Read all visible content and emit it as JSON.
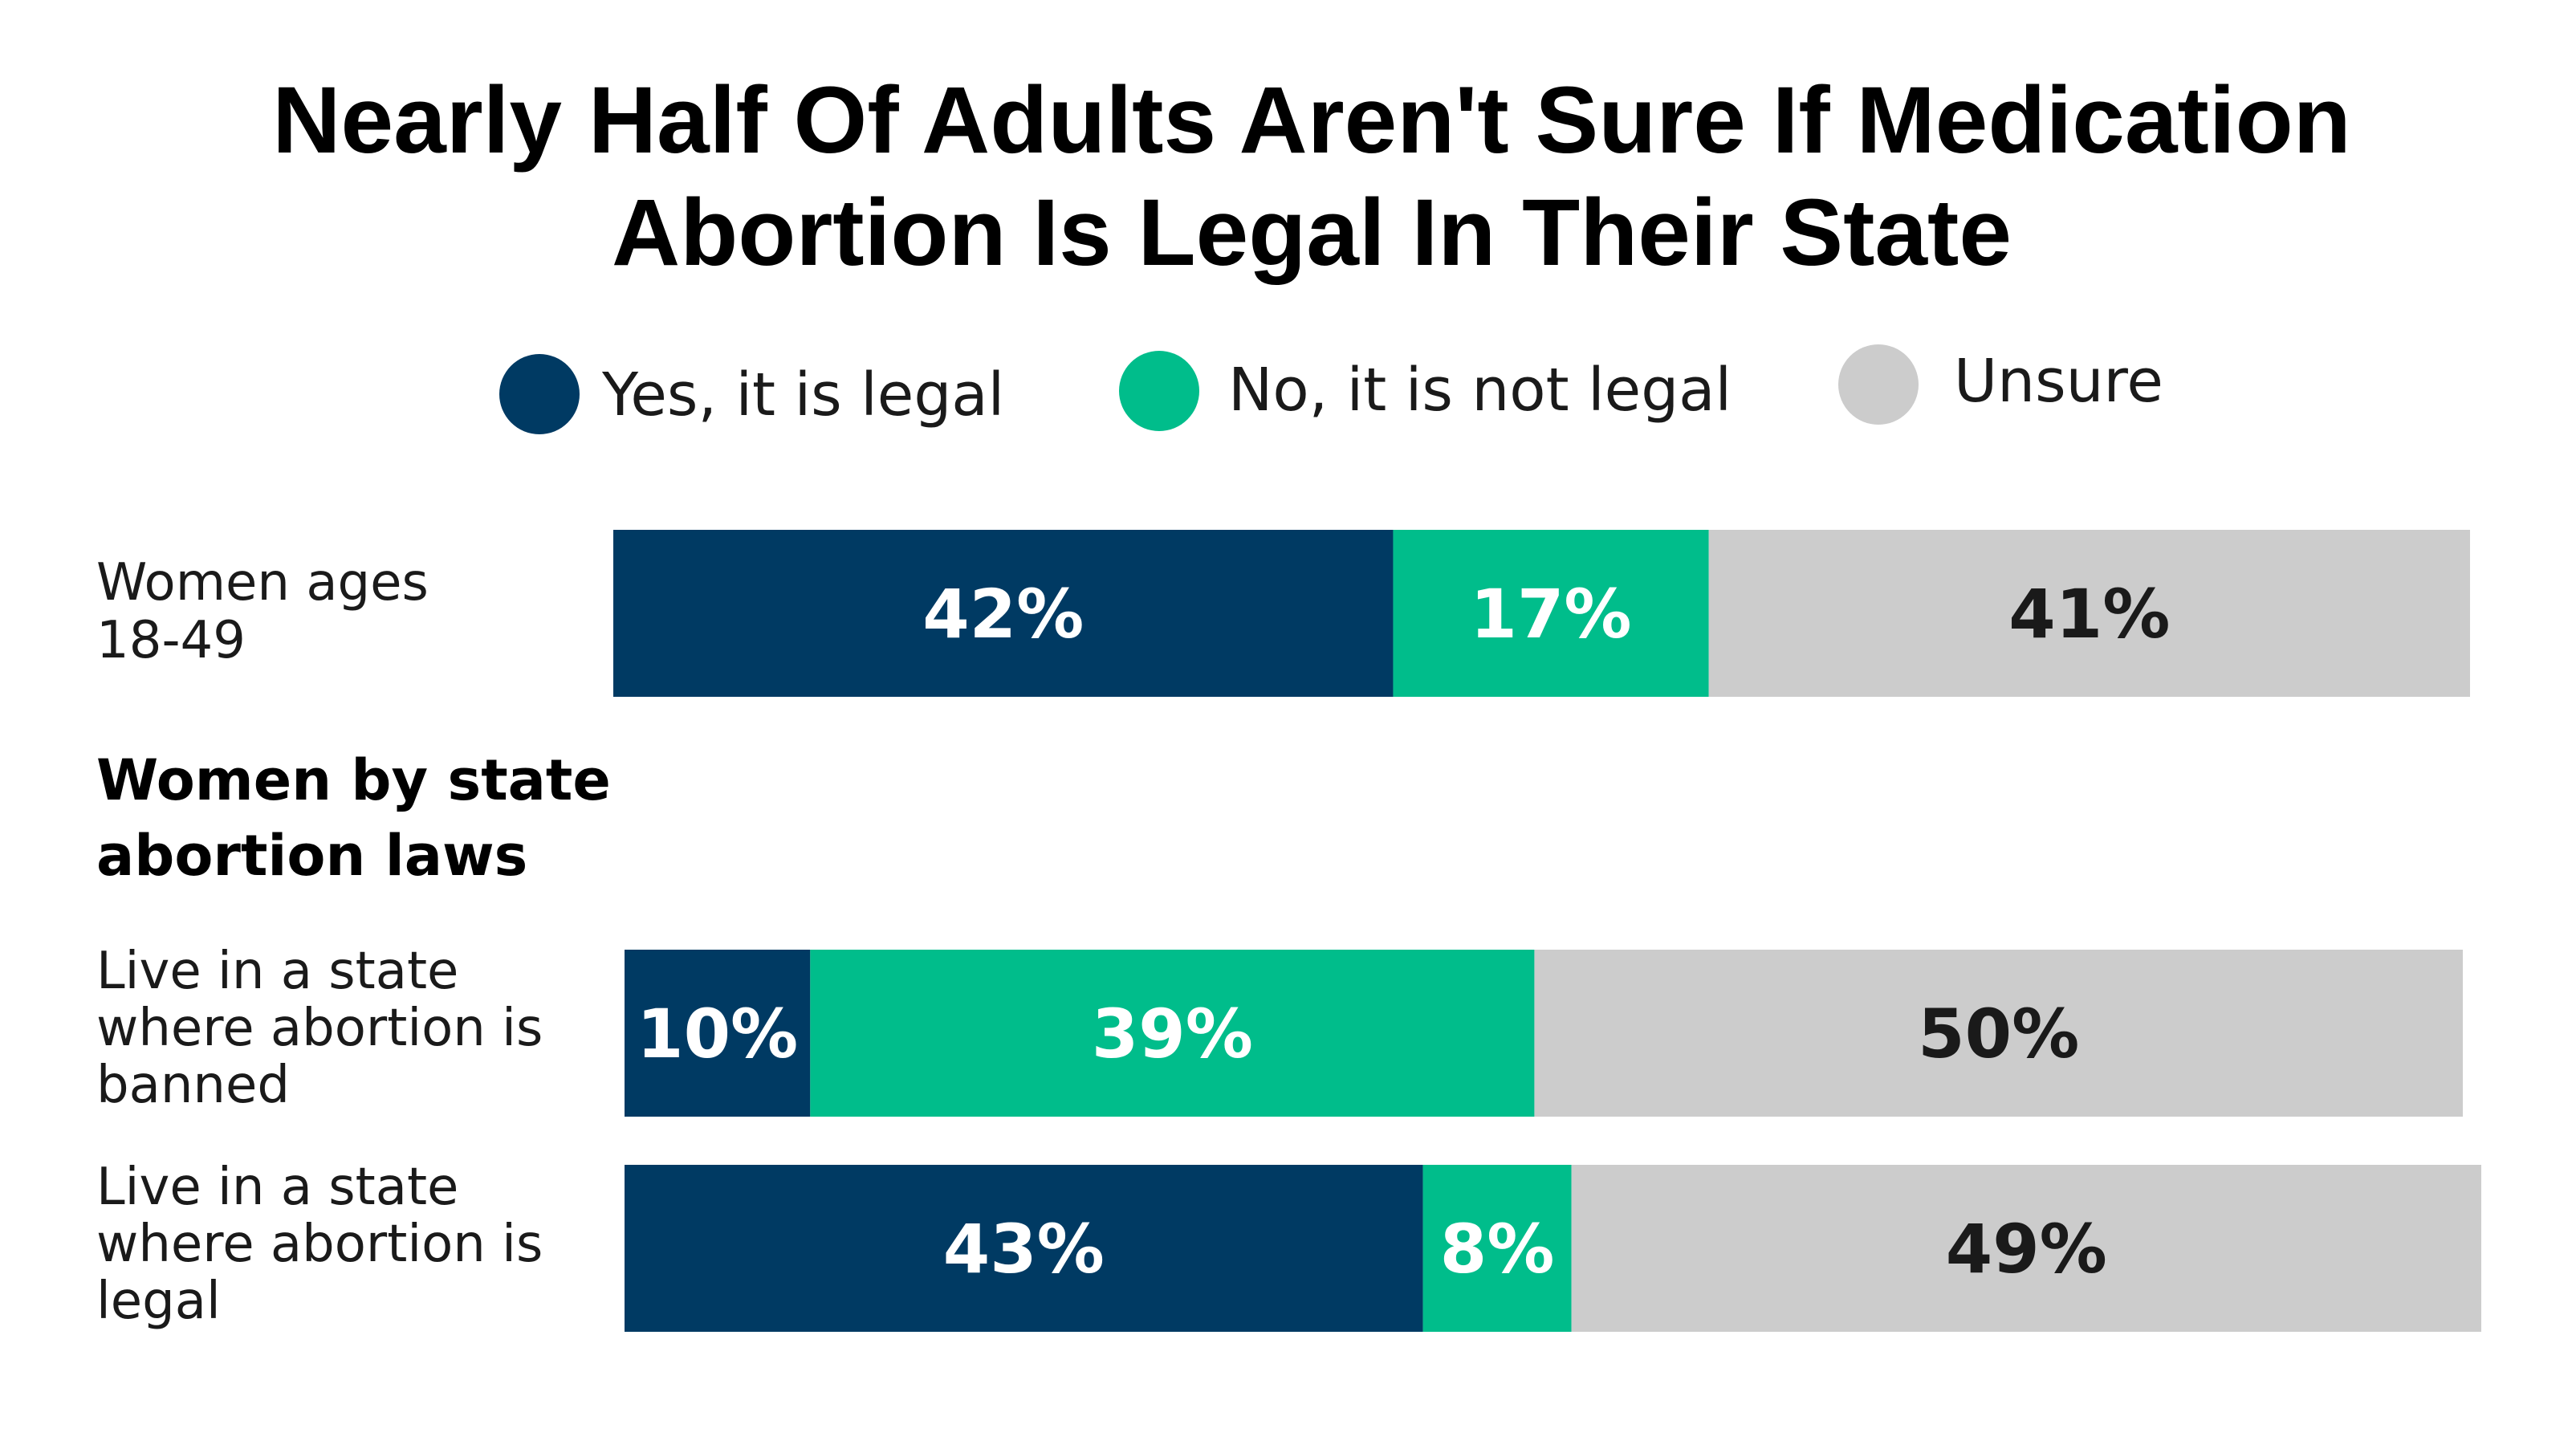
{
  "title_lines": [
    "Nearly Half Of Adults Aren't Sure If Medication",
    "Abortion Is Legal In Their State"
  ],
  "legend": [
    {
      "label": "Yes, it is legal",
      "color": "#003a63"
    },
    {
      "label": "No, it is not legal",
      "color": "#00bd8b"
    },
    {
      "label": "Unsure",
      "color": "#cccccc"
    }
  ],
  "group_heading_lines": [
    "Women by state",
    "abortion laws"
  ],
  "chart_data": {
    "type": "bar",
    "orientation": "horizontal",
    "stacked": true,
    "value_unit": "%",
    "categories": [
      [
        "Women ages",
        "18-49"
      ],
      [
        "Live in a state",
        "where abortion is",
        "banned"
      ],
      [
        "Live in a state",
        "where abortion is",
        "legal"
      ]
    ],
    "series": [
      {
        "name": "Yes, it is legal",
        "color": "#003a63",
        "label_color": "#ffffff",
        "values": [
          42,
          10,
          43
        ]
      },
      {
        "name": "No, it is not legal",
        "color": "#00bd8b",
        "label_color": "#ffffff",
        "values": [
          17,
          39,
          8
        ]
      },
      {
        "name": "Unsure",
        "color": "#cccccc",
        "label_color": "#1a1a1a",
        "values": [
          41,
          50,
          49
        ]
      }
    ],
    "data_labels": [
      [
        "42%",
        "17%",
        "41%"
      ],
      [
        "10%",
        "39%",
        "50%"
      ],
      [
        "43%",
        "8%",
        "49%"
      ]
    ],
    "grid": false,
    "legend_position": "top"
  }
}
